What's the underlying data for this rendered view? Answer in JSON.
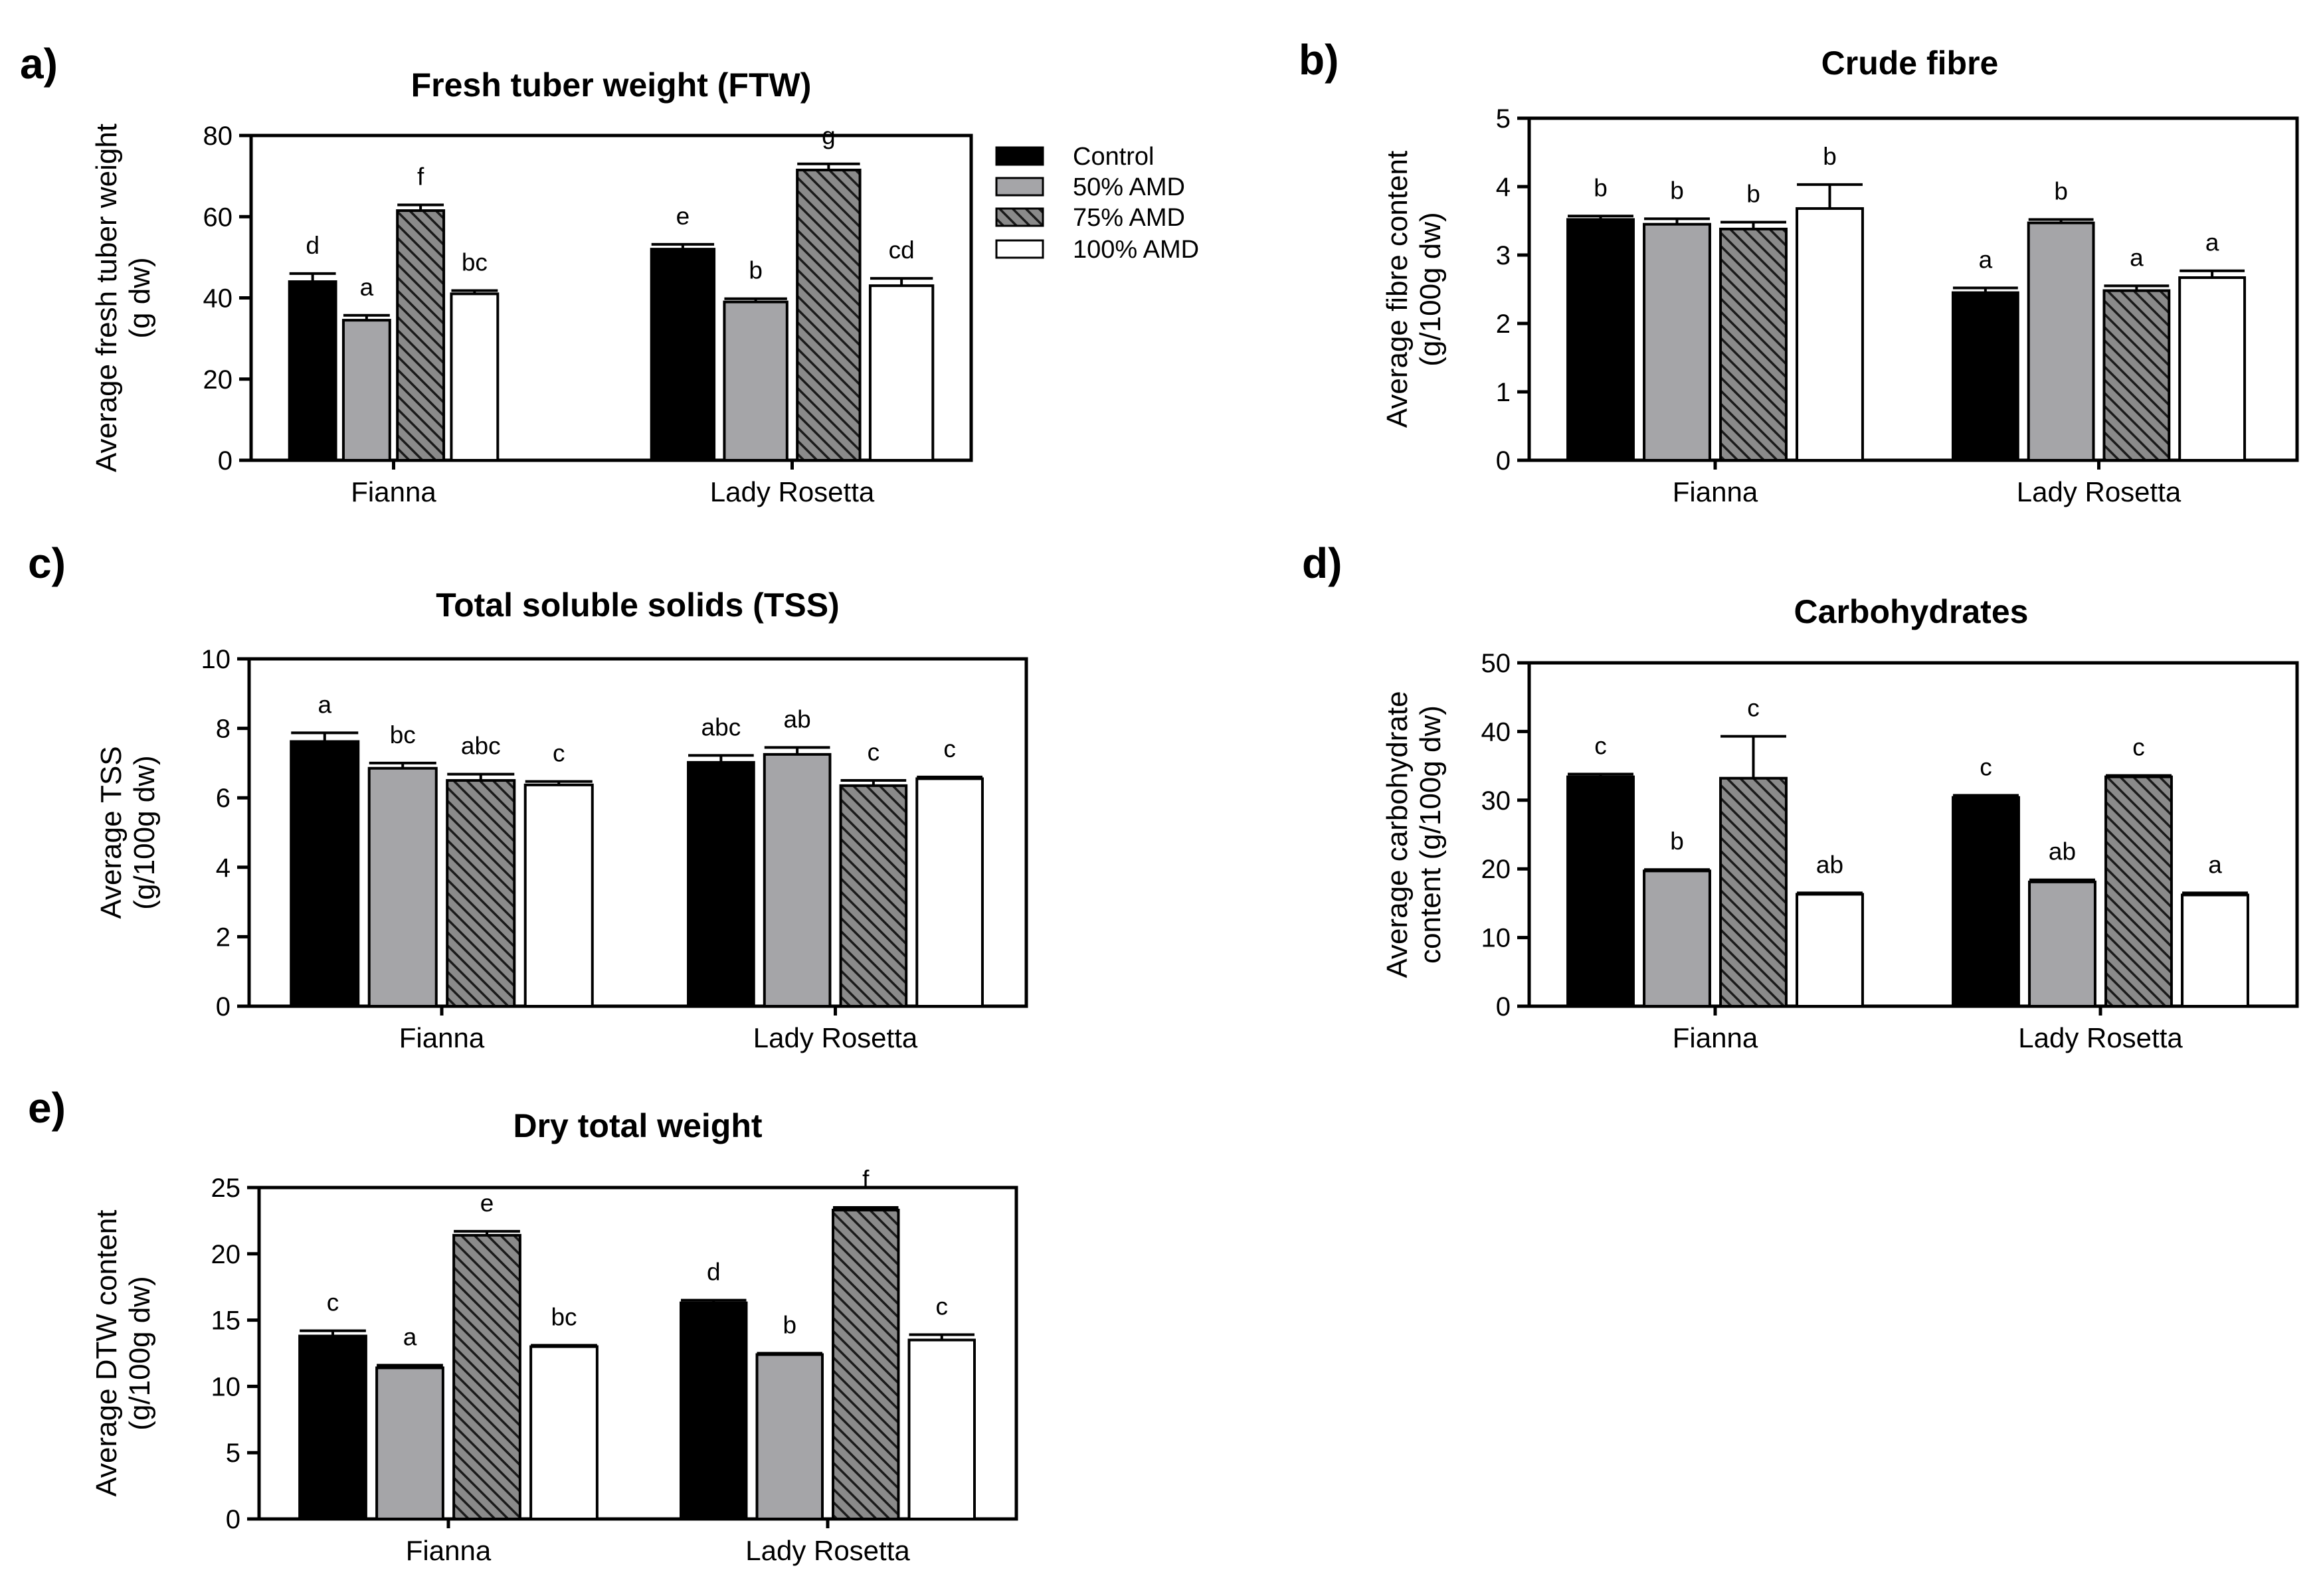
{
  "legend": [
    {
      "label": "Control",
      "fill": "#000000"
    },
    {
      "label": "50% AMD",
      "fill": "#a5a5a8"
    },
    {
      "label": "75% AMD",
      "pattern": "hatch"
    },
    {
      "label": "100% AMD",
      "fill": "#ffffff"
    }
  ],
  "colors": {
    "control": "#000000",
    "amd50": "#a5a5a8",
    "amd75": "#333333",
    "amd100": "#ffffff",
    "error_bars": "#000000"
  },
  "chart_data": [
    {
      "panel": "a)",
      "type": "bar",
      "title": "Fresh tuber weight (FTW)",
      "ylabel": [
        "Average fresh tuber weight",
        "(g dw)"
      ],
      "categories": [
        "Fianna",
        "Lady Rosetta"
      ],
      "ylim": [
        0,
        80
      ],
      "yticks": [
        0,
        20,
        40,
        60,
        80
      ],
      "grid": false,
      "series": [
        {
          "name": "Control",
          "values": [
            44,
            52
          ],
          "errors": [
            2,
            1.2
          ],
          "labels": [
            "d",
            "e"
          ]
        },
        {
          "name": "50% AMD",
          "values": [
            34.5,
            39
          ],
          "errors": [
            1.2,
            0.8
          ],
          "labels": [
            "a",
            "b"
          ]
        },
        {
          "name": "75% AMD",
          "values": [
            61.5,
            71.5
          ],
          "errors": [
            1.4,
            1.5
          ],
          "labels": [
            "f",
            "g"
          ]
        },
        {
          "name": "100% AMD",
          "values": [
            41,
            43
          ],
          "errors": [
            0.8,
            1.8
          ],
          "labels": [
            "bc",
            "cd"
          ]
        }
      ]
    },
    {
      "panel": "b)",
      "type": "bar",
      "title": "Crude fibre",
      "ylabel": [
        "Average fibre content",
        "(g/100g dw)"
      ],
      "categories": [
        "Fianna",
        "Lady Rosetta"
      ],
      "ylim": [
        0,
        5
      ],
      "yticks": [
        0,
        1,
        2,
        3,
        4,
        5
      ],
      "grid": false,
      "series": [
        {
          "name": "Control",
          "values": [
            3.52,
            2.45
          ],
          "errors": [
            0.05,
            0.07
          ],
          "labels": [
            "b",
            "a"
          ]
        },
        {
          "name": "50% AMD",
          "values": [
            3.45,
            3.47
          ],
          "errors": [
            0.08,
            0.05
          ],
          "labels": [
            "b",
            "b"
          ]
        },
        {
          "name": "75% AMD",
          "values": [
            3.38,
            2.48
          ],
          "errors": [
            0.1,
            0.07
          ],
          "labels": [
            "b",
            "a"
          ]
        },
        {
          "name": "100% AMD",
          "values": [
            3.68,
            2.67
          ],
          "errors": [
            0.35,
            0.1
          ],
          "labels": [
            "b",
            "a"
          ]
        }
      ]
    },
    {
      "panel": "c)",
      "type": "bar",
      "title": "Total soluble solids (TSS)",
      "ylabel": [
        "Average TSS",
        "(g/100g dw)"
      ],
      "categories": [
        "Fianna",
        "Lady Rosetta"
      ],
      "ylim": [
        0,
        10
      ],
      "yticks": [
        0,
        2,
        4,
        6,
        8,
        10
      ],
      "grid": false,
      "series": [
        {
          "name": "Control",
          "values": [
            7.62,
            7.02
          ],
          "errors": [
            0.25,
            0.2
          ],
          "labels": [
            "a",
            "abc"
          ]
        },
        {
          "name": "50% AMD",
          "values": [
            6.85,
            7.25
          ],
          "errors": [
            0.15,
            0.2
          ],
          "labels": [
            "bc",
            "ab"
          ]
        },
        {
          "name": "75% AMD",
          "values": [
            6.5,
            6.35
          ],
          "errors": [
            0.18,
            0.15
          ],
          "labels": [
            "abc",
            "c"
          ]
        },
        {
          "name": "100% AMD",
          "values": [
            6.37,
            6.55
          ],
          "errors": [
            0.1,
            0.05
          ],
          "labels": [
            "c",
            "c"
          ]
        }
      ]
    },
    {
      "panel": "d)",
      "type": "bar",
      "title": "Carbohydrates",
      "ylabel": [
        "Average carbohydrate",
        "content (g/100g dw)"
      ],
      "categories": [
        "Fianna",
        "Lady Rosetta"
      ],
      "ylim": [
        0,
        50
      ],
      "yticks": [
        0,
        10,
        20,
        30,
        40,
        50
      ],
      "grid": false,
      "series": [
        {
          "name": "Control",
          "values": [
            33.4,
            30.4
          ],
          "errors": [
            0.4,
            0.3
          ],
          "labels": [
            "c",
            "c"
          ]
        },
        {
          "name": "50% AMD",
          "values": [
            19.7,
            18.1
          ],
          "errors": [
            0.2,
            0.3
          ],
          "labels": [
            "b",
            "ab"
          ]
        },
        {
          "name": "75% AMD",
          "values": [
            33.2,
            33.4
          ],
          "errors": [
            6.1,
            0.2
          ],
          "labels": [
            "c",
            "c"
          ]
        },
        {
          "name": "100% AMD",
          "values": [
            16.3,
            16.2
          ],
          "errors": [
            0.2,
            0.3
          ],
          "labels": [
            "ab",
            "a"
          ]
        }
      ]
    },
    {
      "panel": "e)",
      "type": "bar",
      "title": "Dry total weight",
      "ylabel": [
        "Average DTW content",
        "(g/100g dw)"
      ],
      "categories": [
        "Fianna",
        "Lady Rosetta"
      ],
      "ylim": [
        0,
        25
      ],
      "yticks": [
        0,
        5,
        10,
        15,
        20,
        25
      ],
      "grid": false,
      "series": [
        {
          "name": "Control",
          "values": [
            13.8,
            16.3
          ],
          "errors": [
            0.4,
            0.2
          ],
          "labels": [
            "c",
            "d"
          ]
        },
        {
          "name": "50% AMD",
          "values": [
            11.4,
            12.4
          ],
          "errors": [
            0.2,
            0.1
          ],
          "labels": [
            "a",
            "b"
          ]
        },
        {
          "name": "75% AMD",
          "values": [
            21.4,
            23.3
          ],
          "errors": [
            0.3,
            0.2
          ],
          "labels": [
            "e",
            "f"
          ]
        },
        {
          "name": "100% AMD",
          "values": [
            13.0,
            13.5
          ],
          "errors": [
            0.1,
            0.4
          ],
          "labels": [
            "bc",
            "c"
          ]
        }
      ]
    }
  ]
}
